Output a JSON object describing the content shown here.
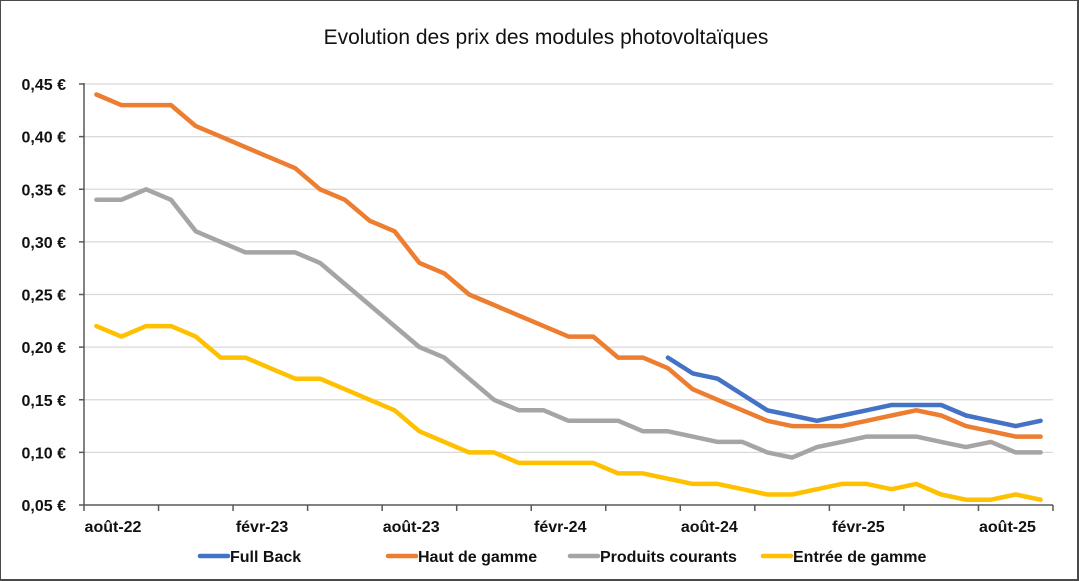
{
  "chart_data": {
    "type": "line",
    "title": "Evolution des prix des modules photovoltaïques",
    "xlabel": "",
    "ylabel": "",
    "ylim": [
      0.05,
      0.45
    ],
    "y_ticks": [
      0.05,
      0.1,
      0.15,
      0.2,
      0.25,
      0.3,
      0.35,
      0.4,
      0.45
    ],
    "y_tick_labels": [
      "0,05 €",
      "0,10 €",
      "0,15 €",
      "0,20 €",
      "0,25 €",
      "0,30 €",
      "0,35 €",
      "0,40 €",
      "0,45 €"
    ],
    "x_tick_labels": [
      {
        "index": 0,
        "label": "août-22"
      },
      {
        "index": 6,
        "label": "févr-23"
      },
      {
        "index": 12,
        "label": "août-23"
      },
      {
        "index": 18,
        "label": "févr-24"
      },
      {
        "index": 24,
        "label": "août-24"
      },
      {
        "index": 30,
        "label": "févr-25"
      },
      {
        "index": 36,
        "label": "août-25"
      }
    ],
    "grid": true,
    "legend_position": "bottom",
    "categories": [
      "août-22",
      "sept-22",
      "oct-22",
      "nov-22",
      "déc-22",
      "janv-23",
      "févr-23",
      "mars-23",
      "avr-23",
      "mai-23",
      "juin-23",
      "juil-23",
      "août-23",
      "sept-23",
      "oct-23",
      "nov-23",
      "déc-23",
      "janv-24",
      "févr-24",
      "mars-24",
      "avr-24",
      "mai-24",
      "juin-24",
      "juil-24",
      "août-24",
      "sept-24",
      "oct-24",
      "nov-24",
      "déc-24",
      "janv-25",
      "févr-25",
      "mars-25",
      "avr-25",
      "mai-25",
      "juin-25",
      "juil-25",
      "août-25",
      "sept-25",
      "oct-25"
    ],
    "series": [
      {
        "name": "Full Back",
        "color": "#4472c4",
        "values": [
          null,
          null,
          null,
          null,
          null,
          null,
          null,
          null,
          null,
          null,
          null,
          null,
          null,
          null,
          null,
          null,
          null,
          null,
          null,
          null,
          null,
          null,
          null,
          0.19,
          0.175,
          0.17,
          0.155,
          0.14,
          0.135,
          0.13,
          0.135,
          0.14,
          0.145,
          0.145,
          0.145,
          0.135,
          0.13,
          0.125,
          0.13
        ]
      },
      {
        "name": "Haut de gamme",
        "color": "#ed7d31",
        "values": [
          0.44,
          0.43,
          0.43,
          0.43,
          0.41,
          0.4,
          0.39,
          0.38,
          0.37,
          0.35,
          0.34,
          0.32,
          0.31,
          0.28,
          0.27,
          0.25,
          0.24,
          0.23,
          0.22,
          0.21,
          0.21,
          0.19,
          0.19,
          0.18,
          0.16,
          0.15,
          0.14,
          0.13,
          0.125,
          0.125,
          0.125,
          0.13,
          0.135,
          0.14,
          0.135,
          0.125,
          0.12,
          0.115,
          0.115
        ]
      },
      {
        "name": "Produits courants",
        "color": "#a5a5a5",
        "values": [
          0.34,
          0.34,
          0.35,
          0.34,
          0.31,
          0.3,
          0.29,
          0.29,
          0.29,
          0.28,
          0.26,
          0.24,
          0.22,
          0.2,
          0.19,
          0.17,
          0.15,
          0.14,
          0.14,
          0.13,
          0.13,
          0.13,
          0.12,
          0.12,
          0.115,
          0.11,
          0.11,
          0.1,
          0.095,
          0.105,
          0.11,
          0.115,
          0.115,
          0.115,
          0.11,
          0.105,
          0.11,
          0.1,
          0.1
        ]
      },
      {
        "name": "Entrée de gamme",
        "color": "#ffc000",
        "values": [
          0.22,
          0.21,
          0.22,
          0.22,
          0.21,
          0.19,
          0.19,
          0.18,
          0.17,
          0.17,
          0.16,
          0.15,
          0.14,
          0.12,
          0.11,
          0.1,
          0.1,
          0.09,
          0.09,
          0.09,
          0.09,
          0.08,
          0.08,
          0.075,
          0.07,
          0.07,
          0.065,
          0.06,
          0.06,
          0.065,
          0.07,
          0.07,
          0.065,
          0.07,
          0.06,
          0.055,
          0.055,
          0.06,
          0.055
        ]
      }
    ]
  }
}
